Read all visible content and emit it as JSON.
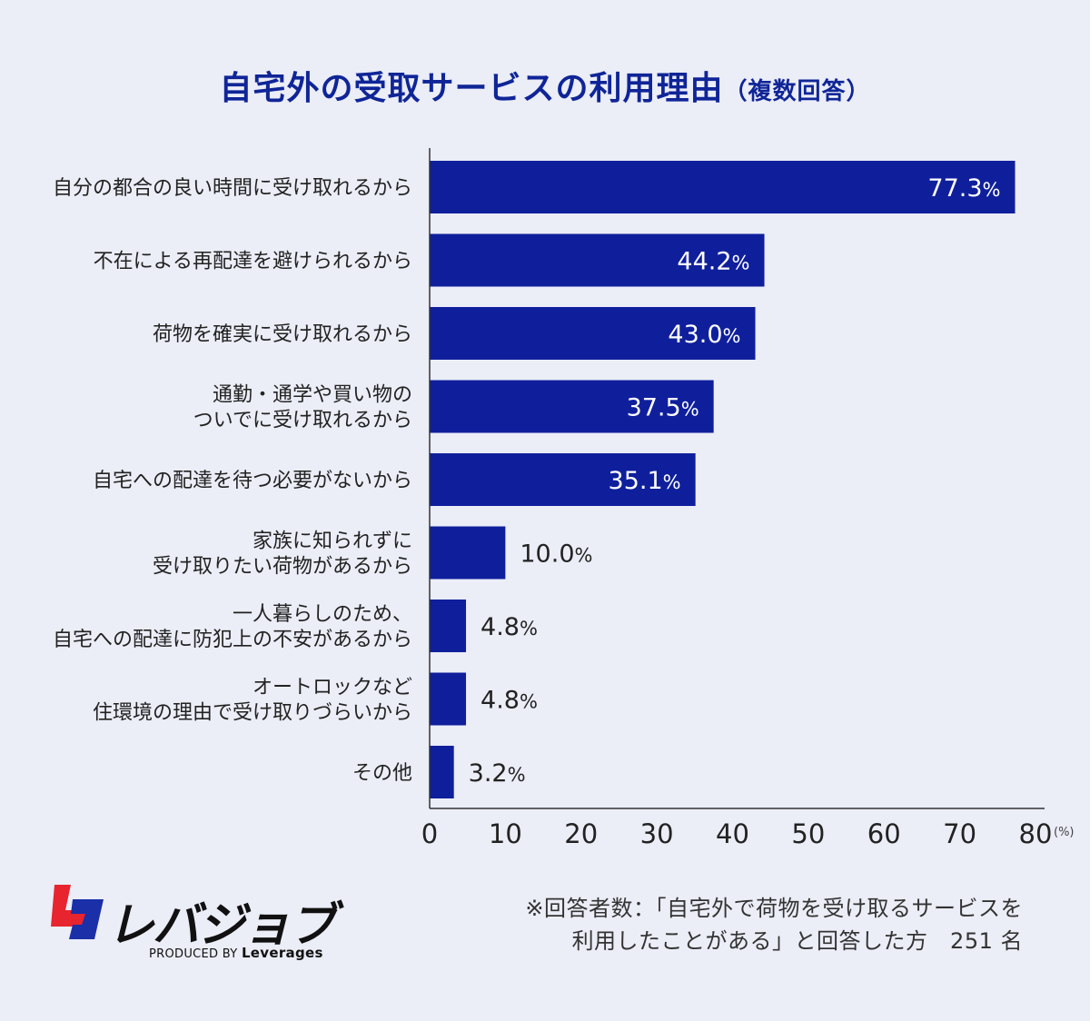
{
  "title": "自宅外の受取サービスの利用理由",
  "title_note": "（複数回答）",
  "colors": {
    "bar": "#0f1f9c",
    "title": "#0f2597",
    "background": "#ebedf7",
    "axis": "#333333"
  },
  "chart_data": {
    "type": "bar",
    "orientation": "horizontal",
    "categories": [
      [
        "自分の都合の良い時間に受け取れるから"
      ],
      [
        "不在による再配達を避けられるから"
      ],
      [
        "荷物を確実に受け取れるから"
      ],
      [
        "通勤・通学や買い物の",
        "ついでに受け取れるから"
      ],
      [
        "自宅への配達を待つ必要がないから"
      ],
      [
        "家族に知られずに",
        "受け取りたい荷物があるから"
      ],
      [
        "一人暮らしのため、",
        "自宅への配達に防犯上の不安があるから"
      ],
      [
        "オートロックなど",
        "住環境の理由で受け取りづらいから"
      ],
      [
        "その他"
      ]
    ],
    "values": [
      77.3,
      44.2,
      43.0,
      37.5,
      35.1,
      10.0,
      4.8,
      4.8,
      3.2
    ],
    "value_labels": [
      "77.3",
      "44.2",
      "43.0",
      "37.5",
      "35.1",
      "10.0",
      "4.8",
      "4.8",
      "3.2"
    ],
    "value_unit": "%",
    "xlim": [
      0,
      80
    ],
    "x_ticks": [
      "0",
      "10",
      "20",
      "30",
      "40",
      "50",
      "60",
      "70",
      "80"
    ],
    "x_unit": "(%)",
    "grid": false
  },
  "footnote": {
    "line1": "※回答者数：「自宅外で荷物を受け取るサービスを",
    "line2": "利用したことがある」と回答した方　251 名"
  },
  "logo": {
    "name": "レバジョブ",
    "produced_by": "PRODUCED BY",
    "company": "Leverages"
  }
}
